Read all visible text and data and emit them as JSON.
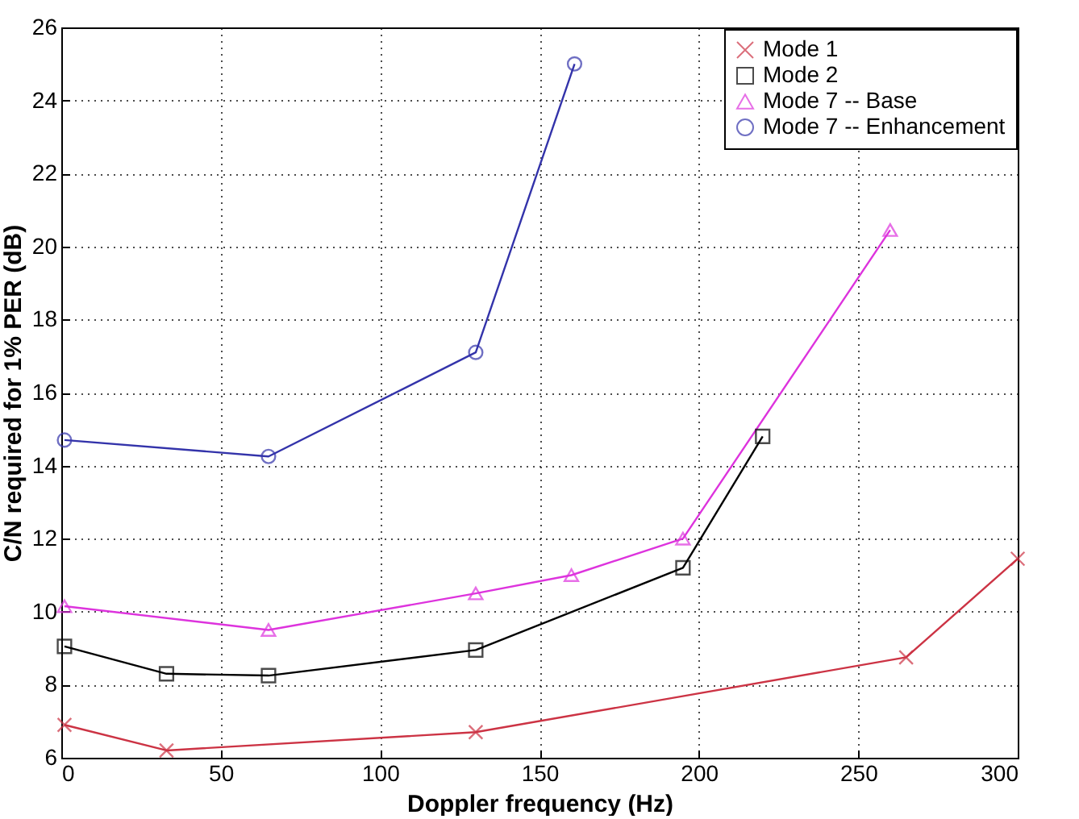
{
  "chart_data": {
    "type": "line",
    "xlabel": "Doppler frequency (Hz)",
    "ylabel": "C/N required for 1% PER (dB)",
    "xlim": [
      0,
      300
    ],
    "xticks": [
      0,
      50,
      100,
      150,
      200,
      250,
      300
    ],
    "ylim": [
      6,
      26
    ],
    "yticks": [
      6,
      8,
      10,
      12,
      14,
      16,
      18,
      20,
      22,
      24,
      26
    ],
    "grid": true,
    "legend": "top right",
    "line_style": "solid",
    "series": [
      {
        "name": "Mode 1",
        "color": "#cc3344",
        "marker": "cross",
        "x": [
          1,
          33,
          130,
          265,
          300
        ],
        "values": [
          6.9,
          6.2,
          6.7,
          8.75,
          11.45
        ]
      },
      {
        "name": "Mode 2",
        "color": "#000000",
        "marker": "square",
        "x": [
          1,
          33,
          65,
          130,
          195,
          220
        ],
        "values": [
          9.05,
          8.3,
          8.25,
          8.95,
          11.2,
          14.8
        ]
      },
      {
        "name": "Mode 7 -- Base",
        "color": "#dd33dd",
        "marker": "triangle",
        "x": [
          1,
          65,
          130,
          160,
          195,
          260
        ],
        "values": [
          10.15,
          9.5,
          10.5,
          11.0,
          12.0,
          20.45
        ]
      },
      {
        "name": "Mode 7 -- Enhancement",
        "color": "#3333aa",
        "marker": "circle",
        "x": [
          1,
          65,
          130,
          161
        ],
        "values": [
          14.7,
          14.25,
          17.1,
          25
        ]
      }
    ]
  }
}
